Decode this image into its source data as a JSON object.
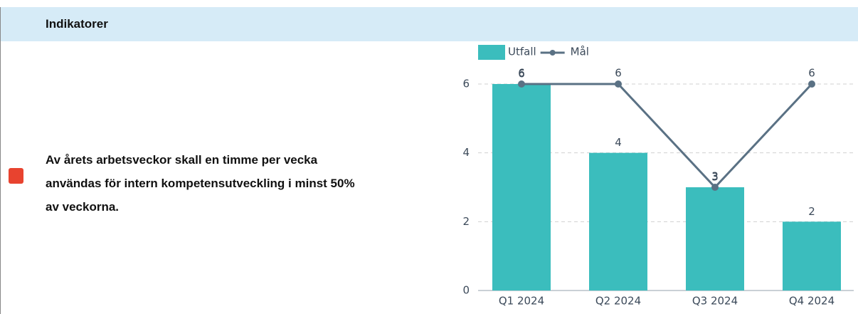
{
  "header": {
    "title": "Indikatorer"
  },
  "indicator": {
    "status_color": "#e8432f",
    "text_lines": [
      "Av årets arbetsveckor skall en timme per vecka",
      "användas för intern kompetensutveckling i minst 50%",
      "av veckorna."
    ]
  },
  "chart_data": {
    "type": "bar",
    "categories": [
      "Q1 2024",
      "Q2 2024",
      "Q3 2024",
      "Q4 2024"
    ],
    "series": [
      {
        "name": "Utfall",
        "type": "bar",
        "color": "#3bbdbd",
        "values": [
          6,
          4,
          3,
          2
        ]
      },
      {
        "name": "Mål",
        "type": "line",
        "color": "#5a7184",
        "values": [
          6,
          6,
          3,
          6
        ]
      }
    ],
    "ylim": [
      0,
      6
    ],
    "yticks": [
      0,
      2,
      4,
      6
    ],
    "grid": true,
    "legend": "top"
  }
}
